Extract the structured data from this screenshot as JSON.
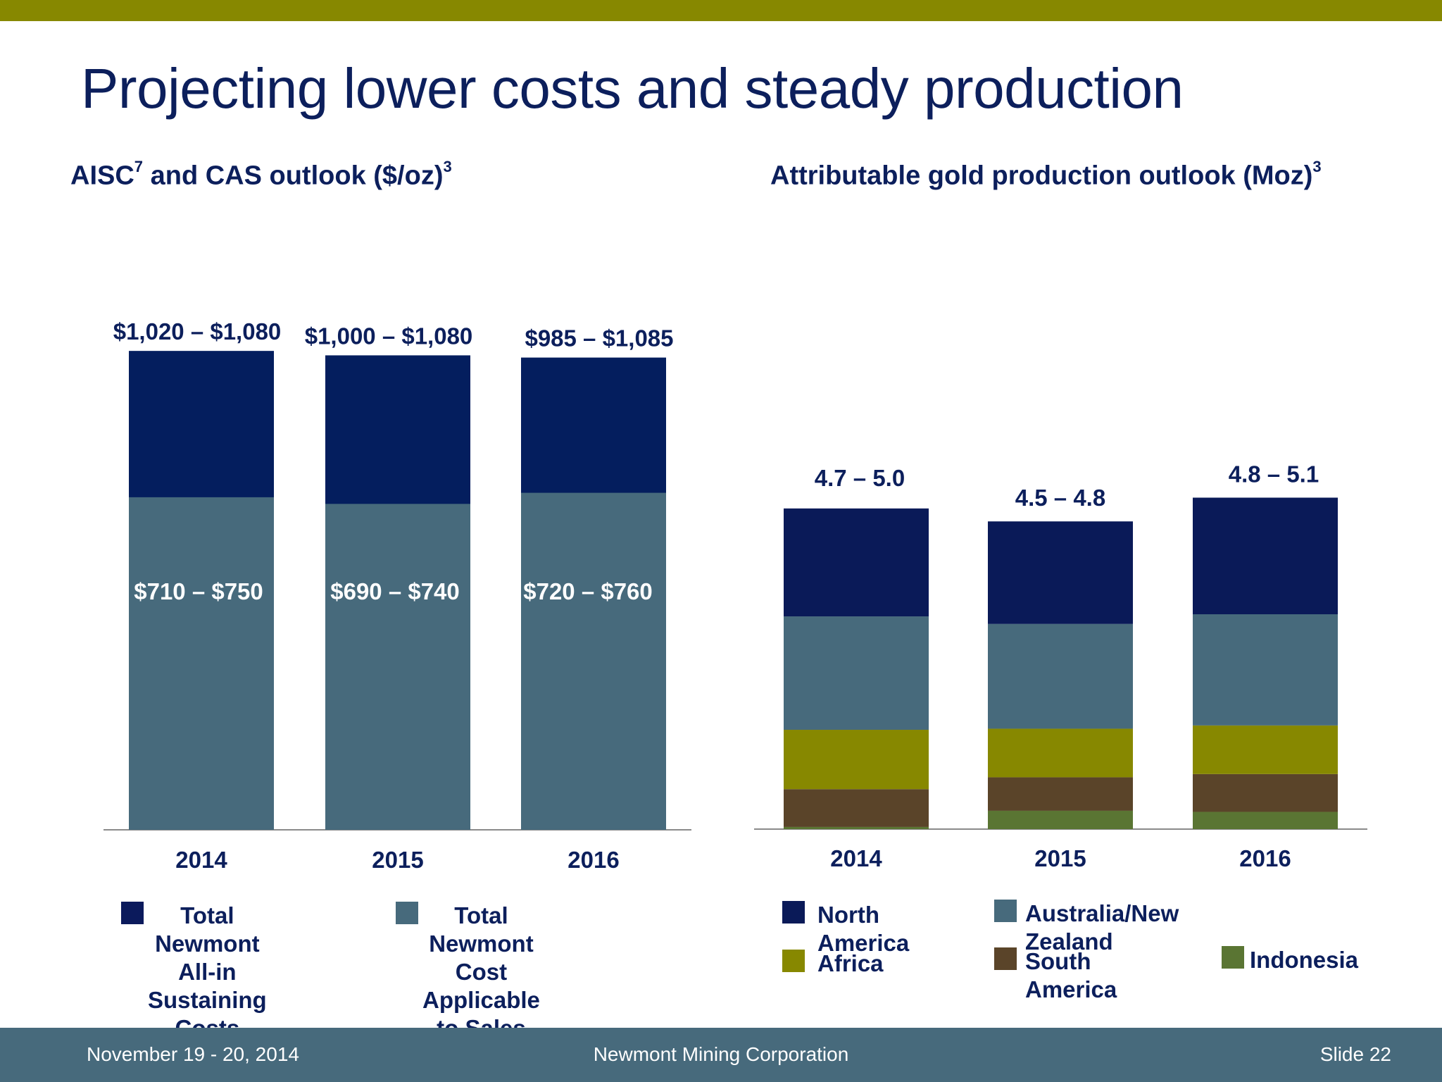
{
  "slide": {
    "title": "Projecting lower costs and steady production",
    "footer": {
      "date": "November 19 - 20, 2014",
      "company": "Newmont Mining Corporation",
      "slide_number": "Slide 22"
    },
    "colors": {
      "top_bar": "#878800",
      "footer_bg": "#476a7c",
      "title_text": "#0c1f5c"
    }
  },
  "chart_data": [
    {
      "type": "bar",
      "stacked": false,
      "overlapping": true,
      "title_parts": [
        "AISC",
        "7",
        " and CAS outlook ($/oz)",
        "3"
      ],
      "categories": [
        "2014",
        "2015",
        "2016"
      ],
      "ylim": [
        0,
        1085
      ],
      "series": [
        {
          "name": "Total Newmont All-in Sustaining Costs",
          "color": "#041e5e",
          "values": [
            1080,
            1070,
            1065
          ],
          "labels": [
            "$1,020 – $1,080",
            "$1,000 – $1,080",
            "$985 – $1,085"
          ]
        },
        {
          "name": "Total Newmont Cost Applicable to Sales",
          "color": "#476a7c",
          "values": [
            750,
            735,
            760
          ],
          "labels": [
            "$710 – $750",
            "$690 – $740",
            "$720 – $760"
          ]
        }
      ],
      "legend": {
        "placement": "bottom",
        "items": [
          {
            "line1": "Total Newmont All-in",
            "line2": "Sustaining Costs",
            "color": "#0b1a5c"
          },
          {
            "line1": "Total Newmont Cost",
            "line2": "Applicable to Sales",
            "color": "#476a7c"
          }
        ]
      },
      "grid": false
    },
    {
      "type": "bar",
      "stacked": true,
      "title_parts": [
        "Attributable gold production outlook (Moz)",
        "3"
      ],
      "categories": [
        "2014",
        "2015",
        "2016"
      ],
      "ylim": [
        0,
        5.2
      ],
      "series": [
        {
          "name": "Indonesia",
          "color": "#5a7533",
          "values": [
            0.02,
            0.17,
            0.16
          ]
        },
        {
          "name": "South America",
          "color": "#5a4429",
          "values": [
            0.35,
            0.31,
            0.35
          ]
        },
        {
          "name": "Africa",
          "color": "#878800",
          "values": [
            0.55,
            0.45,
            0.45
          ]
        },
        {
          "name": "Australia/New Zealand",
          "color": "#476a7c",
          "values": [
            1.05,
            0.97,
            1.03
          ]
        },
        {
          "name": "North America",
          "color": "#0a1a58",
          "values": [
            1.0,
            0.95,
            1.08
          ]
        }
      ],
      "totals_labels": [
        "4.7 – 5.0",
        "4.5 – 4.8",
        "4.8 – 5.1"
      ],
      "legend": {
        "placement": "bottom",
        "items": [
          {
            "label": "North America",
            "color": "#0a1a58"
          },
          {
            "label": "Australia/New Zealand",
            "color": "#476a7c"
          },
          {
            "label": "Africa",
            "color": "#878800"
          },
          {
            "label": "South America",
            "color": "#5a4429"
          },
          {
            "label": "Indonesia",
            "color": "#5a7533"
          }
        ]
      },
      "grid": false
    }
  ]
}
